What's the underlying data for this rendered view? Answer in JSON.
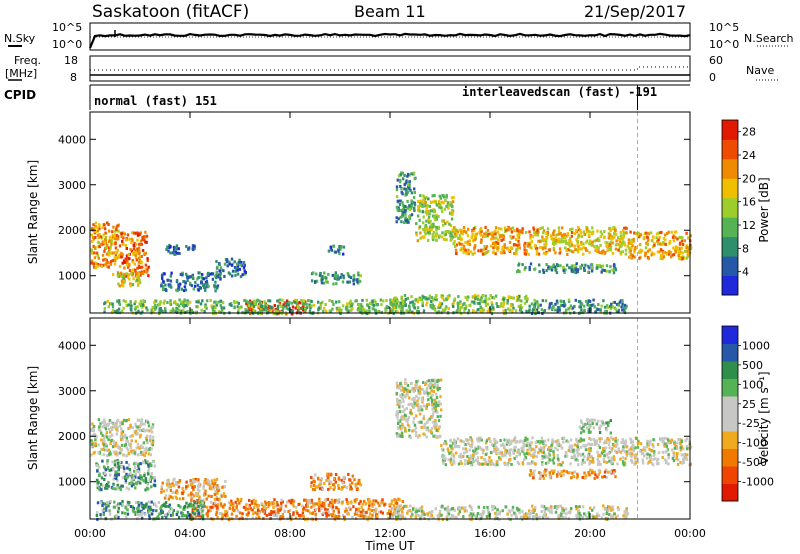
{
  "header": {
    "station": "Saskatoon (fitACF)",
    "beam": "Beam 11",
    "date": "21/Sep/2017"
  },
  "noise_panel": {
    "left_label": "N.Sky",
    "right_label": "N.Search",
    "y_ticks": [
      "10^5",
      "10^0"
    ],
    "right_ticks": [
      "10^5",
      "10^0"
    ]
  },
  "freq_panel": {
    "left_label_1": "Freq.",
    "left_label_2": "[MHz]",
    "left_ticks": [
      "18",
      "8"
    ],
    "right_label": "Nave",
    "right_ticks": [
      "60",
      "0"
    ]
  },
  "cpid_panel": {
    "label": "CPID",
    "mode_1": "normal (fast) 151",
    "mode_2": "interleavedscan (fast) -191"
  },
  "time_axis": {
    "label": "Time UT",
    "ticks": [
      "00:00",
      "04:00",
      "08:00",
      "12:00",
      "16:00",
      "20:00",
      "00:00"
    ],
    "range_hours": [
      0,
      24
    ],
    "mode_change_hour": 21.9
  },
  "chart_data": [
    {
      "type": "heatmap",
      "name": "power",
      "ylabel": "Slant Range [km]",
      "ylim": [
        180,
        4600
      ],
      "y_ticks": [
        "4000",
        "3000",
        "2000",
        "1000"
      ],
      "y_tick_values": [
        4000,
        3000,
        2000,
        1000
      ],
      "colorbar": {
        "label": "Power [dB]",
        "ticks": [
          "28",
          "24",
          "20",
          "16",
          "12",
          "8",
          "4"
        ],
        "tick_values": [
          28,
          24,
          20,
          16,
          12,
          8,
          4
        ],
        "range": [
          0,
          30
        ]
      },
      "colors": [
        "#1f29d9",
        "#2658a8",
        "#2f8f6d",
        "#55b355",
        "#9ccd2a",
        "#f0c000",
        "#f08a00",
        "#ee4b00",
        "#e01a00"
      ],
      "regions": [
        {
          "t": [
            0.0,
            1.2
          ],
          "r": [
            1200,
            2200
          ],
          "level": 0.7
        },
        {
          "t": [
            1.2,
            2.3
          ],
          "r": [
            1000,
            2000
          ],
          "level": 0.78
        },
        {
          "t": [
            0.8,
            2.0
          ],
          "r": [
            800,
            1100
          ],
          "level": 0.55
        },
        {
          "t": [
            2.8,
            5.2
          ],
          "r": [
            700,
            1100
          ],
          "level": 0.22
        },
        {
          "t": [
            3.0,
            4.2
          ],
          "r": [
            1500,
            1700
          ],
          "level": 0.18
        },
        {
          "t": [
            5.0,
            6.2
          ],
          "r": [
            1000,
            1400
          ],
          "level": 0.22
        },
        {
          "t": [
            8.8,
            10.8
          ],
          "r": [
            850,
            1100
          ],
          "level": 0.3
        },
        {
          "t": [
            9.5,
            10.2
          ],
          "r": [
            1500,
            1700
          ],
          "level": 0.22
        },
        {
          "t": [
            6.2,
            8.6
          ],
          "r": [
            190,
            480
          ],
          "level": 0.95
        },
        {
          "t": [
            0.5,
            12.5
          ],
          "r": [
            200,
            500
          ],
          "level": 0.4
        },
        {
          "t": [
            12.0,
            17.5
          ],
          "r": [
            200,
            600
          ],
          "level": 0.45
        },
        {
          "t": [
            17.5,
            21.5
          ],
          "r": [
            200,
            500
          ],
          "level": 0.3
        },
        {
          "t": [
            12.2,
            13.0
          ],
          "r": [
            2200,
            3300
          ],
          "level": 0.3
        },
        {
          "t": [
            13.0,
            14.5
          ],
          "r": [
            1800,
            2800
          ],
          "level": 0.5
        },
        {
          "t": [
            14.5,
            18.0
          ],
          "r": [
            1500,
            2100
          ],
          "level": 0.68
        },
        {
          "t": [
            18.0,
            21.5
          ],
          "r": [
            1500,
            2100
          ],
          "level": 0.62
        },
        {
          "t": [
            21.5,
            24.0
          ],
          "r": [
            1400,
            2000
          ],
          "level": 0.66
        },
        {
          "t": [
            17.0,
            21.0
          ],
          "r": [
            1100,
            1300
          ],
          "level": 0.3
        }
      ]
    },
    {
      "type": "heatmap",
      "name": "velocity",
      "ylabel": "Slant Range [km]",
      "ylim": [
        180,
        4600
      ],
      "y_ticks": [
        "4000",
        "3000",
        "2000",
        "1000"
      ],
      "y_tick_values": [
        4000,
        3000,
        2000,
        1000
      ],
      "colorbar": {
        "label": "Velocity [m s⁻¹]",
        "ticks": [
          "1000",
          "500",
          "100",
          "25",
          "-25",
          "-100",
          "-500",
          "-1000"
        ]
      },
      "colors": [
        "#e01a00",
        "#f04500",
        "#f07a00",
        "#f0aa20",
        "#c7c7c3",
        "#c7c7c3",
        "#55b355",
        "#2f8f4a",
        "#2658a8",
        "#1f29d9"
      ],
      "regions": [
        {
          "t": [
            0.0,
            2.5
          ],
          "r": [
            1600,
            2400
          ],
          "level": 0.5
        },
        {
          "t": [
            0.2,
            2.6
          ],
          "r": [
            850,
            1500
          ],
          "level": 0.68
        },
        {
          "t": [
            2.8,
            5.4
          ],
          "r": [
            650,
            1100
          ],
          "level": 0.35
        },
        {
          "t": [
            8.8,
            10.8
          ],
          "r": [
            850,
            1200
          ],
          "level": 0.3
        },
        {
          "t": [
            4.0,
            12.5
          ],
          "r": [
            200,
            650
          ],
          "level": 0.28
        },
        {
          "t": [
            0.2,
            4.5
          ],
          "r": [
            200,
            600
          ],
          "level": 0.7
        },
        {
          "t": [
            12.0,
            21.5
          ],
          "r": [
            200,
            500
          ],
          "level": 0.5
        },
        {
          "t": [
            12.2,
            14.0
          ],
          "r": [
            2000,
            3300
          ],
          "level": 0.5
        },
        {
          "t": [
            14.0,
            24.0
          ],
          "r": [
            1400,
            2000
          ],
          "level": 0.5
        },
        {
          "t": [
            17.5,
            21.0
          ],
          "r": [
            1100,
            1300
          ],
          "level": 0.3
        },
        {
          "t": [
            19.5,
            20.8
          ],
          "r": [
            2100,
            2400
          ],
          "level": 0.62
        }
      ]
    }
  ]
}
